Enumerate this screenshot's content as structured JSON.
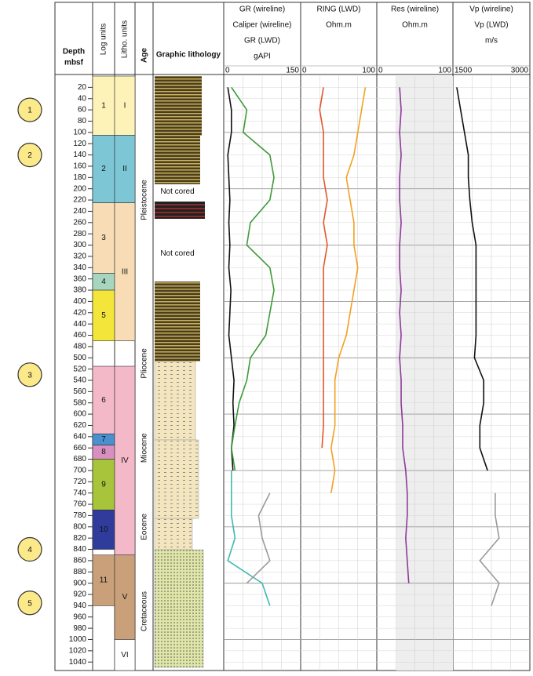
{
  "headers": {
    "depth": "Depth",
    "depth_unit": "mbsf",
    "log_units": "Log units",
    "litho_units": "Litho. units",
    "age": "Age",
    "lithology": "Graphic lithology"
  },
  "depth_lim": [
    0,
    1055
  ],
  "depth_ticks": [
    20,
    40,
    60,
    80,
    100,
    120,
    140,
    160,
    180,
    200,
    220,
    240,
    260,
    280,
    300,
    320,
    340,
    360,
    380,
    400,
    420,
    440,
    460,
    480,
    500,
    520,
    540,
    560,
    580,
    600,
    620,
    640,
    660,
    680,
    700,
    720,
    740,
    760,
    780,
    800,
    820,
    840,
    860,
    880,
    900,
    920,
    940,
    960,
    980,
    1000,
    1020,
    1040
  ],
  "markers": [
    {
      "label": "1",
      "depth": 60
    },
    {
      "label": "2",
      "depth": 140
    },
    {
      "label": "3",
      "depth": 530
    },
    {
      "label": "4",
      "depth": 840
    },
    {
      "label": "5",
      "depth": 935
    }
  ],
  "log_units": [
    {
      "label": "1",
      "top": 0,
      "bottom": 105,
      "color": "#fdf3b8"
    },
    {
      "label": "2",
      "top": 105,
      "bottom": 225,
      "color": "#7cc6d6"
    },
    {
      "label": "3",
      "top": 225,
      "bottom": 350,
      "color": "#f7dcb5"
    },
    {
      "label": "4",
      "top": 350,
      "bottom": 380,
      "color": "#a8d5c0"
    },
    {
      "label": "5",
      "top": 380,
      "bottom": 470,
      "color": "#f4e53a"
    },
    {
      "label": "6",
      "top": 515,
      "bottom": 635,
      "color": "#f4b9c9"
    },
    {
      "label": "7",
      "top": 635,
      "bottom": 655,
      "color": "#4a90d0"
    },
    {
      "label": "8",
      "top": 655,
      "bottom": 680,
      "color": "#d98fc0"
    },
    {
      "label": "9",
      "top": 680,
      "bottom": 770,
      "color": "#a7c43a"
    },
    {
      "label": "10",
      "top": 770,
      "bottom": 840,
      "color": "#2f3c9c"
    },
    {
      "label": "11",
      "top": 850,
      "bottom": 940,
      "color": "#c9a07a"
    }
  ],
  "litho_units": [
    {
      "label": "I",
      "top": 0,
      "bottom": 105,
      "color": "#fdf3b8"
    },
    {
      "label": "II",
      "top": 105,
      "bottom": 225,
      "color": "#7cc6d6"
    },
    {
      "label": "III",
      "top": 225,
      "bottom": 470,
      "color": "#f7dcb5"
    },
    {
      "label": "IV",
      "top": 515,
      "bottom": 850,
      "color": "#f4b9c9"
    },
    {
      "label": "V",
      "top": 850,
      "bottom": 1000,
      "color": "#c9a07a"
    },
    {
      "label": "VI",
      "top": 1000,
      "bottom": 1055,
      "color": "#ffffff"
    }
  ],
  "ages": [
    {
      "label": "Pleistocene",
      "center": 220
    },
    {
      "label": "Pliocene",
      "center": 510
    },
    {
      "label": "Miocene",
      "center": 660
    },
    {
      "label": "Eocene",
      "center": 800
    },
    {
      "label": "Cretaceous",
      "center": 950
    }
  ],
  "not_cored": [
    {
      "label": "Not cored",
      "depth": 205
    },
    {
      "label": "Not cored",
      "depth": 315
    }
  ],
  "depths": [
    20,
    60,
    100,
    140,
    180,
    220,
    260,
    300,
    340,
    380,
    420,
    460,
    500,
    540,
    580,
    620,
    660,
    700,
    740,
    780,
    820,
    860,
    900,
    940,
    980,
    1020
  ],
  "tracks": [
    {
      "titles": [
        "GR (wireline)",
        "Caliper (wireline)",
        "GR (LWD)",
        "gAPI"
      ],
      "xlim": [
        0,
        150
      ],
      "curves": [
        {
          "color": "#111111",
          "values": [
            8,
            15,
            15,
            8,
            10,
            12,
            10,
            12,
            10,
            14,
            12,
            10,
            15,
            20,
            18,
            20,
            15,
            18,
            null,
            null,
            null,
            null,
            null,
            null,
            null,
            null
          ]
        },
        {
          "color": "#3f9a3a",
          "values": [
            15,
            45,
            38,
            90,
            98,
            90,
            52,
            45,
            90,
            98,
            90,
            82,
            52,
            45,
            30,
            22,
            15,
            22,
            null,
            null,
            null,
            null,
            null,
            null,
            null,
            null
          ]
        },
        {
          "color": "#3fb8b0",
          "values": [
            null,
            null,
            null,
            null,
            null,
            null,
            null,
            null,
            null,
            null,
            null,
            null,
            null,
            null,
            null,
            null,
            null,
            15,
            15,
            15,
            22,
            8,
            75,
            90,
            null,
            null
          ]
        },
        {
          "color": "#9a9a9a",
          "values": [
            null,
            null,
            null,
            null,
            null,
            null,
            null,
            null,
            null,
            null,
            null,
            null,
            null,
            null,
            null,
            null,
            null,
            null,
            90,
            68,
            75,
            90,
            45,
            null,
            null,
            null
          ]
        }
      ]
    },
    {
      "titles": [
        "RING (LWD)",
        "Ohm.m"
      ],
      "xlim": [
        0,
        100
      ],
      "curves": [
        {
          "color": "#e2572b",
          "values": [
            30,
            25,
            30,
            30,
            30,
            35,
            30,
            35,
            30,
            30,
            30,
            30,
            30,
            30,
            30,
            30,
            28,
            null,
            null,
            null,
            null,
            null,
            null,
            null,
            null,
            null
          ]
        },
        {
          "color": "#f4a020",
          "values": [
            85,
            80,
            75,
            70,
            60,
            65,
            70,
            70,
            75,
            70,
            65,
            60,
            50,
            45,
            45,
            45,
            40,
            45,
            40,
            null,
            null,
            null,
            null,
            null,
            null,
            null
          ]
        }
      ]
    },
    {
      "titles": [
        "Res (wireline)",
        "Ohm.m"
      ],
      "xlim": [
        0,
        100
      ],
      "curves": [
        {
          "color": "#8e3a9a",
          "values": [
            30,
            32,
            30,
            32,
            30,
            30,
            32,
            30,
            30,
            32,
            30,
            32,
            30,
            32,
            32,
            34,
            34,
            38,
            40,
            40,
            38,
            40,
            42,
            null,
            null,
            null
          ]
        }
      ]
    },
    {
      "titles": [
        "Vp (wireline)",
        "Vp (LWD)",
        "m/s"
      ],
      "xlim": [
        1500,
        3000
      ],
      "curves": [
        {
          "color": "#111111",
          "values": [
            1575,
            1650,
            1725,
            1800,
            1800,
            1830,
            1875,
            1950,
            1950,
            1950,
            1950,
            1950,
            1920,
            2100,
            2100,
            2025,
            2025,
            2175,
            null,
            null,
            null,
            null,
            null,
            null,
            null,
            null
          ]
        },
        {
          "color": "#9a9a9a",
          "values": [
            null,
            null,
            null,
            null,
            null,
            null,
            null,
            null,
            null,
            null,
            null,
            null,
            null,
            null,
            null,
            null,
            null,
            null,
            2325,
            2325,
            2400,
            2025,
            2400,
            2250,
            null,
            null
          ]
        }
      ]
    }
  ]
}
